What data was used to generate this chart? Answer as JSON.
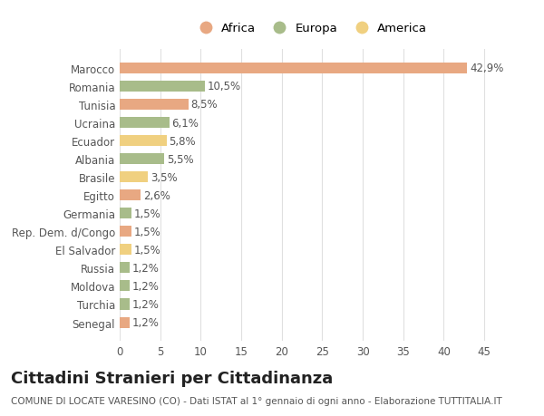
{
  "categories": [
    "Marocco",
    "Romania",
    "Tunisia",
    "Ucraina",
    "Ecuador",
    "Albania",
    "Brasile",
    "Egitto",
    "Germania",
    "Rep. Dem. d/Congo",
    "El Salvador",
    "Russia",
    "Moldova",
    "Turchia",
    "Senegal"
  ],
  "values": [
    42.9,
    10.5,
    8.5,
    6.1,
    5.8,
    5.5,
    3.5,
    2.6,
    1.5,
    1.5,
    1.5,
    1.2,
    1.2,
    1.2,
    1.2
  ],
  "labels": [
    "42,9%",
    "10,5%",
    "8,5%",
    "6,1%",
    "5,8%",
    "5,5%",
    "3,5%",
    "2,6%",
    "1,5%",
    "1,5%",
    "1,5%",
    "1,2%",
    "1,2%",
    "1,2%",
    "1,2%"
  ],
  "continents": [
    "Africa",
    "Europa",
    "Africa",
    "Europa",
    "America",
    "Europa",
    "America",
    "Africa",
    "Europa",
    "Africa",
    "America",
    "Europa",
    "Europa",
    "Europa",
    "Africa"
  ],
  "colors": {
    "Africa": "#E8A882",
    "Europa": "#A8BC8A",
    "America": "#F0D080"
  },
  "title": "Cittadini Stranieri per Cittadinanza",
  "subtitle": "COMUNE DI LOCATE VARESINO (CO) - Dati ISTAT al 1° gennaio di ogni anno - Elaborazione TUTTITALIA.IT",
  "xlim": [
    0,
    47
  ],
  "xticks": [
    0,
    5,
    10,
    15,
    20,
    25,
    30,
    35,
    40,
    45
  ],
  "background_color": "#FFFFFF",
  "bar_height": 0.6,
  "grid_color": "#E0E0E0",
  "text_color": "#555555",
  "label_fontsize": 8.5,
  "tick_fontsize": 8.5,
  "title_fontsize": 13,
  "subtitle_fontsize": 7.5
}
